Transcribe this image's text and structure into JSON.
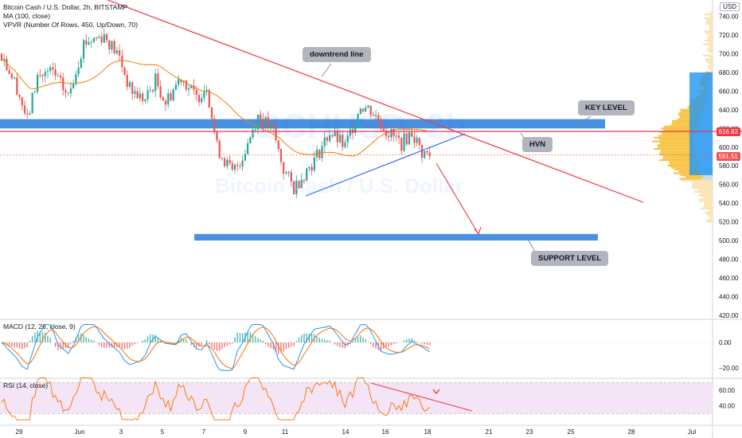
{
  "header": {
    "symbol_line": "Bitcoin Cash / U.S. Dollar, 2h, BITSTAMP",
    "ma_line": "MA (100, close)",
    "vpvr_line": "VPVR (Number Of Rows, 450, Up/Down, 70)",
    "currency": "USD"
  },
  "watermark": {
    "ticker": "BCHUSD, 2h",
    "name": "Bitcoin Cash / U.S. Dollar"
  },
  "annotations": {
    "downtrend": "downtrend line",
    "key_level": "KEY LEVEL",
    "hvn": "HVN",
    "support": "SUPPORT LEVEL"
  },
  "price_tags": {
    "hvn_price": "616.83",
    "last_price": "591.51"
  },
  "indicators": {
    "macd_label": "MACD (12, 26, close, 9)",
    "rsi_label": "RSI (14, close)"
  },
  "colors": {
    "bull": "#26a69a",
    "bear": "#ef5350",
    "ma": "#f57c00",
    "trend": "#f23645",
    "zone": "#4a90e2",
    "wedge": "#2962ff",
    "macd": "#2196f3",
    "signal": "#ff6d00",
    "rsi": "#ff6d00",
    "rsi_band": "#f3e5f5"
  },
  "chart_data": {
    "type": "candlestick",
    "x_ticks": [
      "29",
      "Jun",
      "3",
      "5",
      "7",
      "9",
      "11",
      "14",
      "16",
      "18",
      "21",
      "23",
      "25",
      "28",
      "Jul"
    ],
    "y_ticks": [
      420,
      440,
      460,
      480,
      500,
      520,
      540,
      560,
      580,
      600,
      620,
      640,
      660,
      680,
      700,
      720,
      740
    ],
    "ylim": [
      413,
      748
    ],
    "levels": {
      "key_level_zone": [
        620,
        630
      ],
      "support_zone": [
        500,
        507
      ],
      "hvn_line": 616.83,
      "last_price": 591.51
    },
    "anchors": [
      [
        0,
        700
      ],
      [
        6,
        664
      ],
      [
        10,
        628
      ],
      [
        14,
        676
      ],
      [
        20,
        680
      ],
      [
        26,
        654
      ],
      [
        32,
        712
      ],
      [
        40,
        720
      ],
      [
        46,
        696
      ],
      [
        50,
        662
      ],
      [
        56,
        650
      ],
      [
        60,
        672
      ],
      [
        64,
        648
      ],
      [
        70,
        676
      ],
      [
        76,
        652
      ],
      [
        80,
        667
      ],
      [
        84,
        600
      ],
      [
        90,
        572
      ],
      [
        94,
        590
      ],
      [
        100,
        634
      ],
      [
        106,
        616
      ],
      [
        110,
        576
      ],
      [
        114,
        556
      ],
      [
        118,
        572
      ],
      [
        122,
        586
      ],
      [
        128,
        616
      ],
      [
        134,
        600
      ],
      [
        140,
        645
      ],
      [
        144,
        640
      ],
      [
        150,
        618
      ],
      [
        156,
        604
      ],
      [
        160,
        616
      ],
      [
        164,
        594
      ],
      [
        167,
        591.51
      ]
    ],
    "macd_ylim": [
      -25,
      18
    ],
    "macd_ticks": [
      0,
      -20
    ],
    "rsi_ylim": [
      15,
      80
    ],
    "rsi_ticks": [
      60,
      40
    ]
  }
}
